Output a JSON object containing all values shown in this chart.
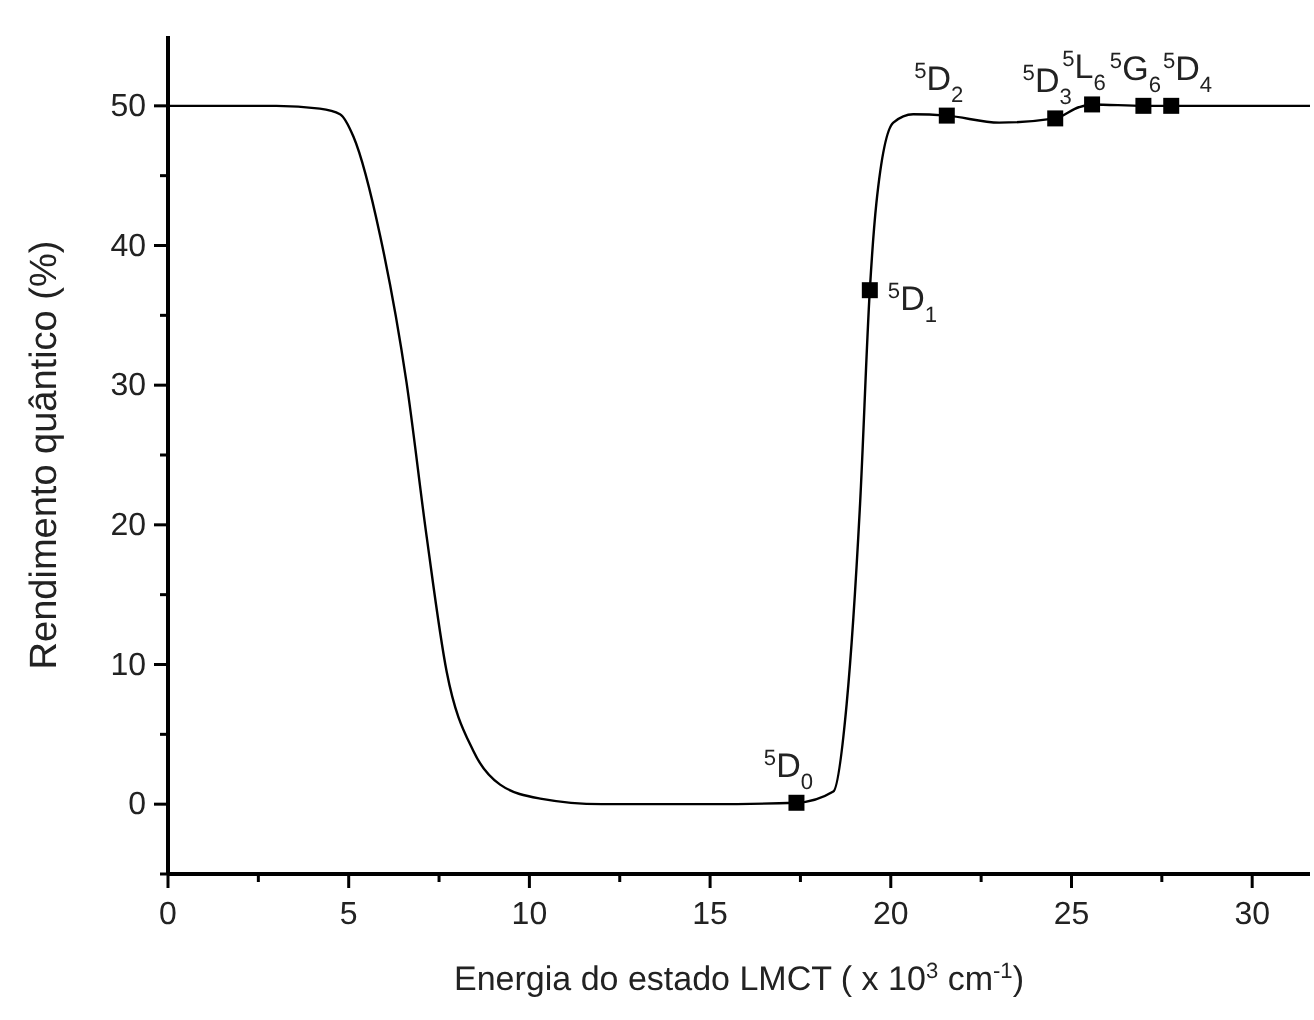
{
  "chart_data": {
    "type": "line",
    "xlabel": "Energia do estado LMCT ( x 10$^{3}$ cm$^{-1}$)",
    "ylabel": "Rendimento quântico (%)",
    "xlim": [
      0,
      31.6
    ],
    "ylim": [
      -5,
      55
    ],
    "xticks": [
      0,
      {
        "value": 2.5,
        "label": null
      },
      5,
      {
        "value": 7.5,
        "label": null
      },
      10,
      {
        "value": 12.5,
        "label": null
      },
      15,
      {
        "value": 17.5,
        "label": null
      },
      20,
      {
        "value": 22.5,
        "label": null
      },
      25,
      {
        "value": 27.5,
        "label": null
      },
      30
    ],
    "yticks": [
      {
        "value": -5,
        "label": null
      },
      0,
      {
        "value": 5,
        "label": null
      },
      10,
      {
        "value": 15,
        "label": null
      },
      20,
      {
        "value": 25,
        "label": null
      },
      30,
      {
        "value": 35,
        "label": null
      },
      40,
      {
        "value": 45,
        "label": null
      },
      50
    ],
    "grid": false,
    "series": [
      {
        "color": "#000000",
        "marker": "none",
        "x": [
          0,
          3,
          4.2,
          4.76,
          5.13,
          5.87,
          6.6,
          7.16,
          7.71,
          8.45,
          9.19,
          10.3,
          12,
          15,
          17.39,
          18.41,
          18.78,
          19.15,
          19.42,
          19.6,
          20.07,
          20.62,
          21.55,
          23.0,
          24.55,
          25.2,
          25.57,
          27,
          31.6
        ],
        "values": [
          50,
          50,
          49.8,
          49.4,
          47.8,
          40.7,
          30.2,
          19.1,
          9.5,
          3.8,
          1.4,
          0.4,
          0,
          0,
          0.1,
          0.9,
          7.2,
          21.5,
          36.8,
          43,
          48.8,
          49.4,
          49.3,
          48.8,
          49.1,
          49.9,
          50.1,
          50,
          50
        ]
      },
      {
        "type": "scatter",
        "color": "#000000",
        "marker": "square",
        "x": [
          17.39,
          19.42,
          21.55,
          24.55,
          25.57,
          26.99,
          27.76
        ],
        "values": [
          0.1,
          36.8,
          49.3,
          49.1,
          50.1,
          50,
          50
        ]
      }
    ],
    "annotations": [
      {
        "text": "$^{5}$D$_{0}$",
        "x": 17.39,
        "y": 0.1
      },
      {
        "text": "$^{5}$D$_{1}$",
        "x": 19.42,
        "y": 36.8
      },
      {
        "text": "$^{5}$D$_{2}$",
        "x": 21.55,
        "y": 49.3
      },
      {
        "text": "$^{5}$D$_{3}$",
        "x": 24.55,
        "y": 49.1
      },
      {
        "text": "$^{5}$L$_{6}$",
        "x": 25.57,
        "y": 50.1
      },
      {
        "text": "$^{5}$G$_{6}$",
        "x": 26.99,
        "y": 50
      },
      {
        "text": "$^{5}$D$_{4}$",
        "x": 27.76,
        "y": 50
      }
    ]
  }
}
